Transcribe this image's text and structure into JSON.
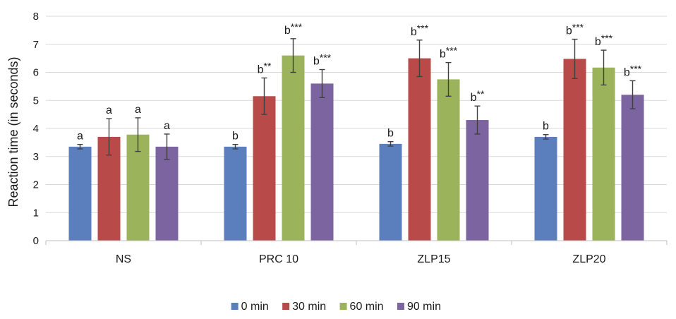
{
  "chart_data": {
    "type": "bar",
    "title": "",
    "xlabel": "",
    "ylabel": "Reaction time (in seconds)",
    "ylim": [
      0,
      8
    ],
    "yticks": [
      0,
      1,
      2,
      3,
      4,
      5,
      6,
      7,
      8
    ],
    "grid": true,
    "legend_position": "bottom",
    "categories": [
      "NS",
      "PRC 10",
      "ZLP15",
      "ZLP20"
    ],
    "series": [
      {
        "name": "0 min",
        "color": "#5b7fbd",
        "values": [
          3.35,
          3.35,
          3.45,
          3.7
        ],
        "errors": [
          0.08,
          0.08,
          0.08,
          0.08
        ],
        "labels": [
          "a",
          "b",
          "b",
          "b"
        ]
      },
      {
        "name": "30 min",
        "color": "#b84a49",
        "values": [
          3.7,
          5.15,
          6.5,
          6.48
        ],
        "errors": [
          0.65,
          0.65,
          0.65,
          0.7
        ],
        "labels": [
          "a",
          "b**",
          "b***",
          "b***"
        ]
      },
      {
        "name": "60 min",
        "color": "#9bb45b",
        "values": [
          3.78,
          6.6,
          5.75,
          6.17
        ],
        "errors": [
          0.6,
          0.6,
          0.6,
          0.62
        ],
        "labels": [
          "a",
          "b***",
          "b***",
          "b***"
        ]
      },
      {
        "name": "90 min",
        "color": "#7c64a0",
        "values": [
          3.35,
          5.6,
          4.3,
          5.2
        ],
        "errors": [
          0.45,
          0.5,
          0.5,
          0.5
        ],
        "labels": [
          "a",
          "b***",
          "b**",
          "b***"
        ]
      }
    ]
  }
}
